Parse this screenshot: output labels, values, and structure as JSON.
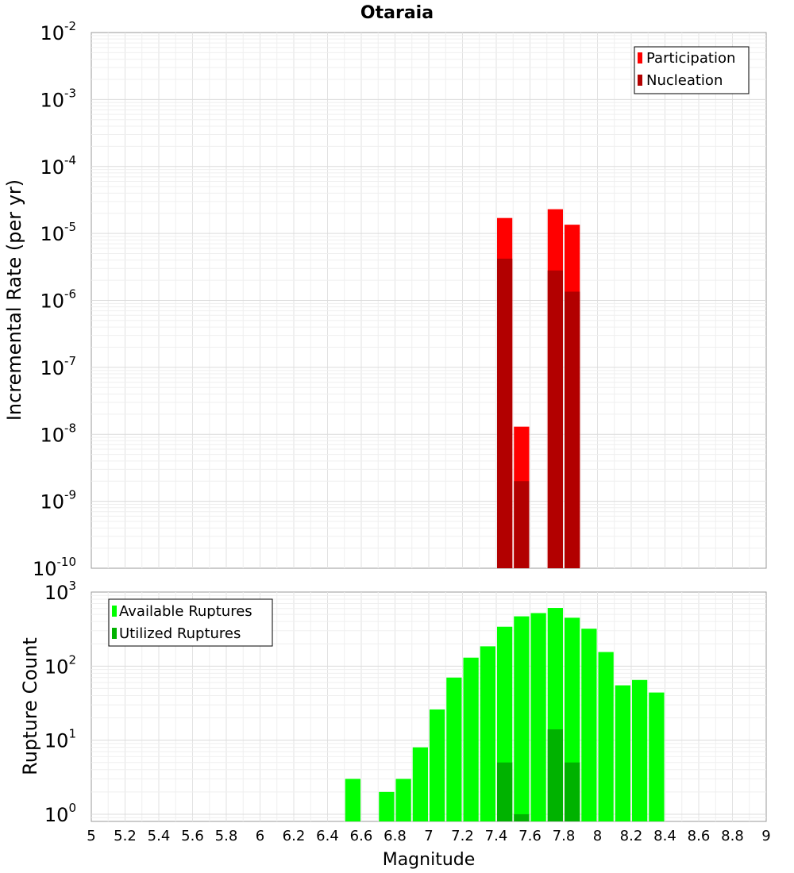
{
  "chart_data": [
    {
      "type": "bar",
      "title": "Otaraia",
      "ylabel": "Incremental Rate (per yr)",
      "yscale": "log",
      "ylim": [
        1e-10,
        0.01
      ],
      "xlim": [
        5,
        9
      ],
      "bar_width": 0.1,
      "legend_position": "top-right",
      "y_tick_labels": [
        {
          "base": "10",
          "exp": "-10"
        },
        {
          "base": "10",
          "exp": "-9"
        },
        {
          "base": "10",
          "exp": "-8"
        },
        {
          "base": "10",
          "exp": "-7"
        },
        {
          "base": "10",
          "exp": "-6"
        },
        {
          "base": "10",
          "exp": "-5"
        },
        {
          "base": "10",
          "exp": "-4"
        },
        {
          "base": "10",
          "exp": "-3"
        },
        {
          "base": "10",
          "exp": "-2"
        }
      ],
      "series": [
        {
          "name": "Participation",
          "color": "#ff0000",
          "x": [
            7.45,
            7.55,
            7.75,
            7.85
          ],
          "values": [
            1.7e-05,
            1.3e-08,
            2.3e-05,
            1.35e-05
          ]
        },
        {
          "name": "Nucleation",
          "color": "#b20000",
          "x": [
            7.45,
            7.55,
            7.75,
            7.85
          ],
          "values": [
            4.2e-06,
            2e-09,
            2.8e-06,
            1.35e-06
          ]
        }
      ]
    },
    {
      "type": "bar",
      "xlabel": "Magnitude",
      "ylabel": "Rupture Count",
      "yscale": "log",
      "ylim": [
        0.8,
        1000
      ],
      "xlim": [
        5,
        9
      ],
      "bar_width": 0.1,
      "legend_position": "top-left",
      "x_tick_labels": [
        "5",
        "5.2",
        "5.4",
        "5.6",
        "5.8",
        "6",
        "6.2",
        "6.4",
        "6.6",
        "6.8",
        "7",
        "7.2",
        "7.4",
        "7.6",
        "7.8",
        "8",
        "8.2",
        "8.4",
        "8.6",
        "8.8",
        "9"
      ],
      "y_tick_labels": [
        {
          "base": "10",
          "exp": "0"
        },
        {
          "base": "10",
          "exp": "1"
        },
        {
          "base": "10",
          "exp": "2"
        },
        {
          "base": "10",
          "exp": "3"
        }
      ],
      "series": [
        {
          "name": "Available Ruptures",
          "color": "#00ff00",
          "x": [
            6.55,
            6.75,
            6.85,
            6.95,
            7.05,
            7.15,
            7.25,
            7.35,
            7.45,
            7.55,
            7.65,
            7.75,
            7.85,
            7.95,
            8.05,
            8.15,
            8.25,
            8.35
          ],
          "values": [
            3,
            2,
            3,
            8,
            26,
            70,
            130,
            185,
            340,
            470,
            520,
            610,
            450,
            320,
            155,
            55,
            65,
            44
          ]
        },
        {
          "name": "Utilized Ruptures",
          "color": "#00b200",
          "x": [
            7.45,
            7.55,
            7.75,
            7.85
          ],
          "values": [
            5,
            1,
            14,
            5
          ]
        }
      ]
    }
  ]
}
